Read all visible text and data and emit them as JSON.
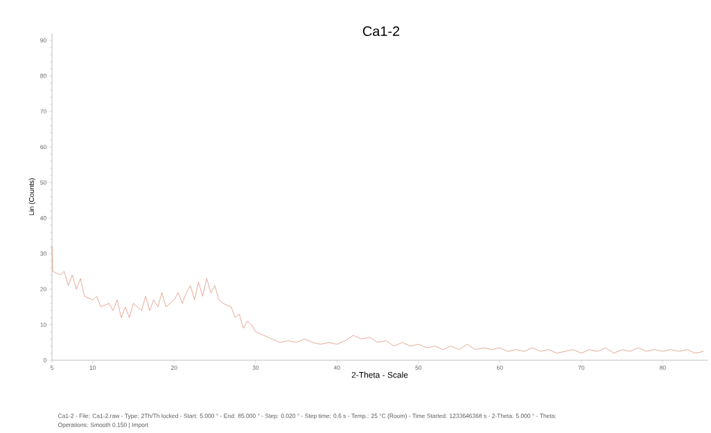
{
  "chart_data": {
    "type": "line",
    "title": "Ca1-2",
    "xlabel": "2-Theta - Scale",
    "ylabel": "Lin (Counts)",
    "annotations": [
      "Ca1-2 - File: Ca1-2.raw - Type: 2Th/Th locked - Start: 5.000 ° - End: 85.000 ° - Step: 0.020 ° - Step time: 0.6 s - Temp.: 25 °C (Room) - Time Started: 1233646368 s - 2-Theta: 5.000 ° - Theta:",
      "Operations: Smooth 0.150 | Import"
    ],
    "x": [
      5.0,
      5.1,
      6,
      6.5,
      7,
      7.5,
      8,
      8.5,
      9,
      10,
      10.5,
      11,
      12,
      12.5,
      13,
      13.5,
      14,
      14.5,
      15,
      16,
      16.5,
      17,
      17.5,
      18,
      18.5,
      19,
      20,
      20.5,
      21,
      21.5,
      22,
      22.5,
      23,
      23.5,
      24,
      24.5,
      25,
      25.5,
      26,
      27,
      27.5,
      28,
      28.5,
      29,
      29.5,
      30,
      31,
      32,
      33,
      34,
      35,
      36,
      37,
      38,
      39,
      40,
      41,
      42,
      43,
      44,
      45,
      46,
      47,
      48,
      49,
      50,
      51,
      52,
      53,
      54,
      55,
      56,
      57,
      58,
      59,
      60,
      61,
      62,
      63,
      64,
      65,
      66,
      67,
      68,
      69,
      70,
      71,
      72,
      73,
      74,
      75,
      76,
      77,
      78,
      79,
      80,
      81,
      82,
      83,
      84,
      85
    ],
    "series": [
      {
        "color": "#d9826a",
        "values": [
          32,
          25,
          24,
          25,
          21,
          24,
          20,
          23,
          18,
          17,
          18,
          15,
          16,
          14,
          17,
          12,
          15,
          12,
          16,
          14,
          18,
          14,
          17,
          15,
          19,
          15,
          17,
          19,
          16,
          19,
          21,
          17,
          22,
          18,
          23,
          19,
          21,
          17,
          16,
          15,
          12,
          13,
          9,
          11,
          10,
          8,
          7,
          6,
          5,
          5.5,
          5,
          6,
          5,
          4.5,
          5,
          4.5,
          5.5,
          7,
          6,
          6.5,
          5,
          5.5,
          4,
          5,
          4,
          4.5,
          3.5,
          4,
          3,
          4,
          3,
          4.5,
          3,
          3.5,
          3,
          3.5,
          2.5,
          3,
          2.5,
          3.5,
          2.5,
          3,
          2,
          2.5,
          3,
          2,
          3,
          2.5,
          3.5,
          2,
          3,
          2.5,
          3.5,
          2.5,
          3,
          2.5,
          3,
          2.5,
          3,
          2,
          2.5
        ]
      }
    ],
    "xlim": [
      5,
      85.5
    ],
    "ylim": [
      0,
      92
    ],
    "xticks": [
      5,
      10,
      20,
      30,
      40,
      50,
      60,
      70,
      80
    ],
    "yticks": [
      0,
      10,
      20,
      30,
      40,
      50,
      60,
      70,
      80,
      90
    ],
    "grid": false
  }
}
